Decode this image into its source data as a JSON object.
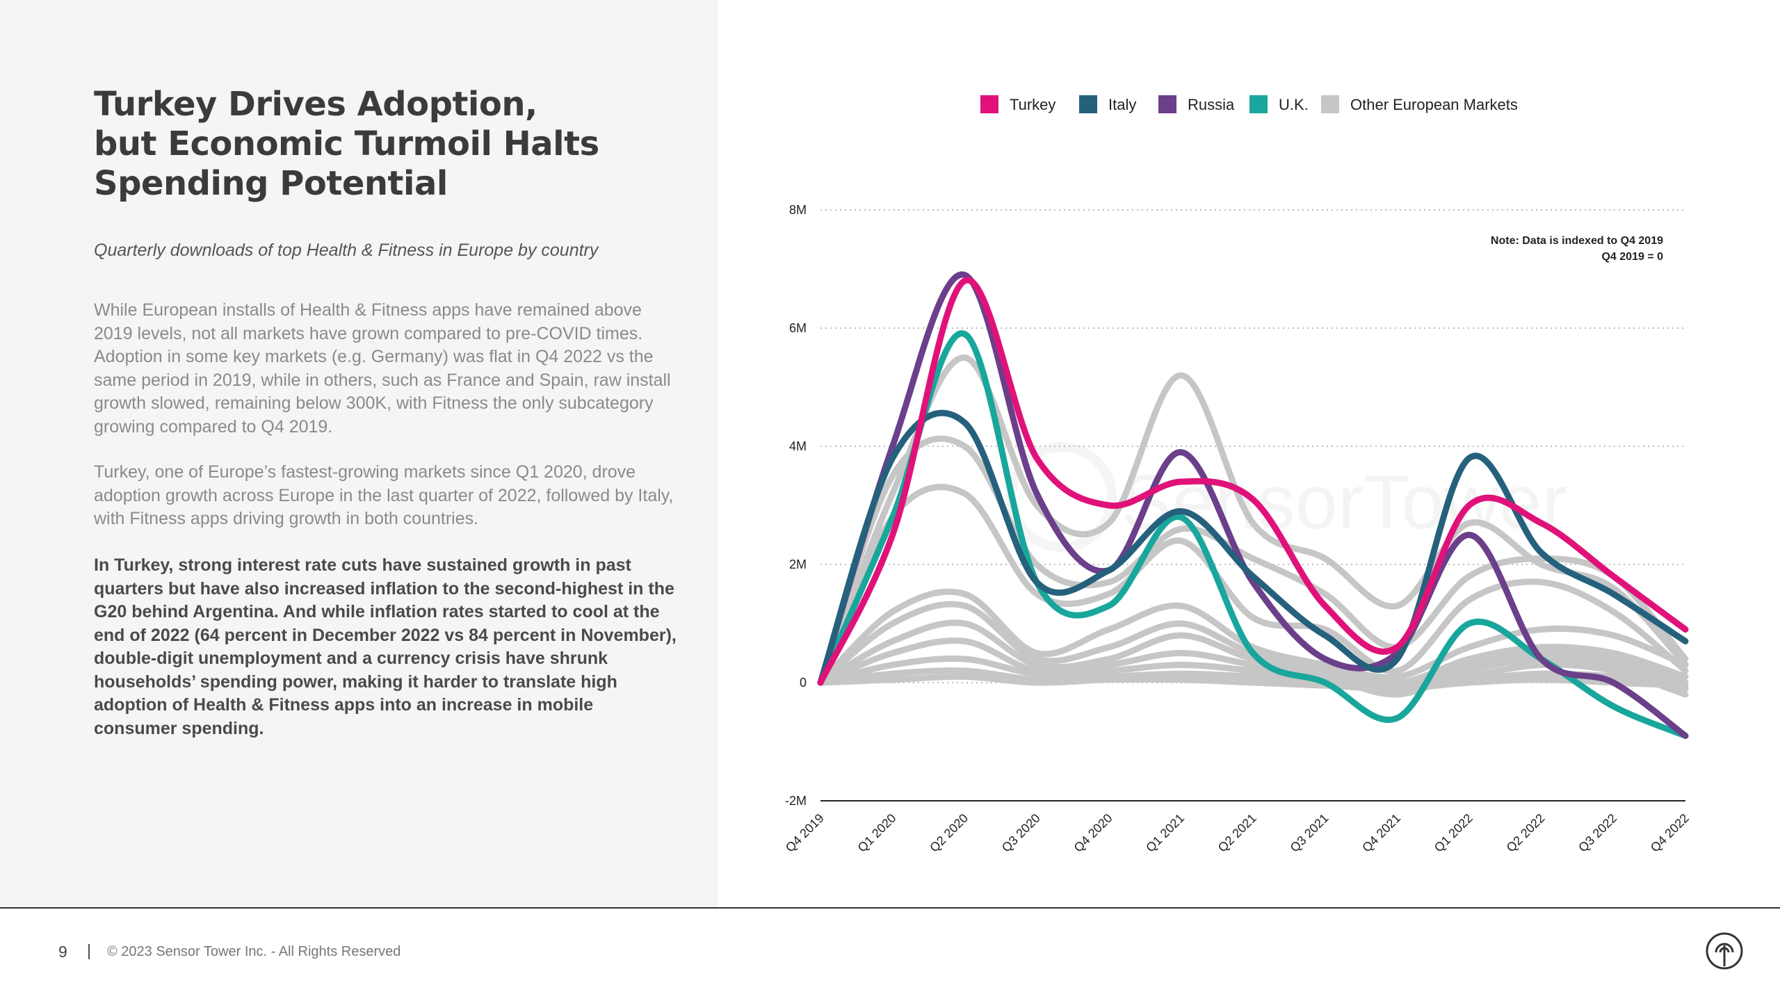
{
  "page": {
    "title_lines": [
      "Turkey Drives Adoption,",
      "but Economic Turmoil Halts",
      "Spending Potential"
    ],
    "subtitle": "Quarterly downloads of top Health & Fitness in Europe by country",
    "paragraphs": [
      "While European installs of Health & Fitness apps have remained above 2019 levels, not all markets have grown compared to pre-COVID times. Adoption in some key markets (e.g. Germany) was flat in Q4 2022 vs the same period in 2019, while in others, such as France and Spain, raw install growth slowed, remaining below 300K, with Fitness the only subcategory growing compared to Q4 2019.",
      "Turkey, one of Europe’s fastest-growing markets since Q1 2020, drove adoption growth across Europe in the last quarter of 2022, followed by Italy, with Fitness apps driving growth in both countries.",
      "In Turkey, strong interest rate cuts have sustained growth in past quarters but have also increased inflation to the second-highest in the G20 behind Argentina. And while inflation rates started to cool at the end of 2022 (64 percent in December 2022 vs 84 percent in November), double-digit unemployment and a currency crisis have shrunk households’ spending power, making it harder to translate high adoption of Health & Fitness apps into an increase in mobile consumer spending."
    ]
  },
  "footer": {
    "page_number": "9",
    "separator": "|",
    "copyright": "© 2023 Sensor Tower Inc. - All Rights Reserved",
    "logo_icon": "sensor-tower-logo-icon"
  },
  "watermark": "SensorTower",
  "chart_data": {
    "type": "line",
    "categories": [
      "Q4 2019",
      "Q1 2020",
      "Q2 2020",
      "Q3 2020",
      "Q4 2020",
      "Q1 2021",
      "Q2 2021",
      "Q3 2021",
      "Q4 2021",
      "Q1 2022",
      "Q2 2022",
      "Q3 2022",
      "Q4 2022"
    ],
    "y_ticks": [
      {
        "value": 8000000,
        "label": "8M"
      },
      {
        "value": 6000000,
        "label": "6M"
      },
      {
        "value": 4000000,
        "label": "4M"
      },
      {
        "value": 2000000,
        "label": "2M"
      },
      {
        "value": 0,
        "label": "0"
      },
      {
        "value": -2000000,
        "label": "-2M"
      }
    ],
    "ylim": [
      -2000000,
      8000000
    ],
    "grid": "horizontal dotted",
    "legend_position": "top",
    "note_lines": [
      "Note: Data is indexed to Q4 2019",
      "Q4 2019 = 0"
    ],
    "series": [
      {
        "name": "Other European Markets",
        "color": "#c6c6c6",
        "legend": true,
        "values": [
          0,
          3200000,
          5500000,
          3000000,
          2700000,
          5200000,
          2700000,
          2100000,
          1300000,
          2700000,
          2000000,
          1600000,
          300000
        ]
      },
      {
        "name": "",
        "color": "#c6c6c6",
        "legend": false,
        "values": [
          0,
          3500000,
          4000000,
          2000000,
          1700000,
          2600000,
          2100000,
          1500000,
          600000,
          1800000,
          2100000,
          1800000,
          400000
        ]
      },
      {
        "name": "",
        "color": "#c6c6c6",
        "legend": false,
        "values": [
          0,
          2800000,
          3200000,
          1500000,
          1500000,
          2400000,
          1100000,
          900000,
          200000,
          1400000,
          1700000,
          1200000,
          200000
        ]
      },
      {
        "name": "",
        "color": "#c6c6c6",
        "legend": false,
        "values": [
          0,
          1200000,
          1500000,
          500000,
          900000,
          1300000,
          600000,
          300000,
          100000,
          600000,
          900000,
          800000,
          300000
        ]
      },
      {
        "name": "",
        "color": "#c6c6c6",
        "legend": false,
        "values": [
          0,
          1000000,
          1300000,
          400000,
          600000,
          1000000,
          500000,
          300000,
          0,
          400000,
          600000,
          500000,
          100000
        ]
      },
      {
        "name": "",
        "color": "#c6c6c6",
        "legend": false,
        "values": [
          0,
          700000,
          1000000,
          300000,
          400000,
          800000,
          400000,
          200000,
          -100000,
          300000,
          500000,
          400000,
          0
        ]
      },
      {
        "name": "",
        "color": "#c6c6c6",
        "legend": false,
        "values": [
          0,
          500000,
          700000,
          200000,
          300000,
          500000,
          300000,
          100000,
          -200000,
          200000,
          400000,
          300000,
          -100000
        ]
      },
      {
        "name": "",
        "color": "#c6c6c6",
        "legend": false,
        "values": [
          0,
          300000,
          400000,
          150000,
          200000,
          300000,
          200000,
          50000,
          -150000,
          100000,
          300000,
          200000,
          -200000
        ]
      },
      {
        "name": "",
        "color": "#c6c6c6",
        "legend": false,
        "values": [
          0,
          150000,
          200000,
          50000,
          100000,
          150000,
          100000,
          0,
          -100000,
          50000,
          150000,
          100000,
          -100000
        ]
      },
      {
        "name": "",
        "color": "#c6c6c6",
        "legend": false,
        "values": [
          0,
          50000,
          100000,
          0,
          50000,
          50000,
          0,
          -50000,
          -100000,
          0,
          50000,
          0,
          -50000
        ]
      },
      {
        "name": "U.K.",
        "color": "#19a69c",
        "legend": true,
        "values": [
          0,
          2800000,
          5900000,
          1700000,
          1300000,
          2800000,
          500000,
          0,
          -600000,
          1000000,
          400000,
          -400000,
          -900000
        ]
      },
      {
        "name": "Russia",
        "color": "#6b3f8a",
        "legend": true,
        "values": [
          0,
          4000000,
          6900000,
          3200000,
          1900000,
          3900000,
          1700000,
          400000,
          500000,
          2500000,
          400000,
          0,
          -900000
        ]
      },
      {
        "name": "Italy",
        "color": "#25617c",
        "legend": true,
        "values": [
          0,
          3800000,
          4400000,
          1700000,
          1900000,
          2900000,
          1800000,
          800000,
          400000,
          3800000,
          2200000,
          1500000,
          700000
        ]
      },
      {
        "name": "Turkey",
        "color": "#e0127a",
        "legend": true,
        "values": [
          0,
          2500000,
          6800000,
          3800000,
          3000000,
          3400000,
          3100000,
          1300000,
          600000,
          3000000,
          2700000,
          1800000,
          900000
        ]
      }
    ]
  }
}
